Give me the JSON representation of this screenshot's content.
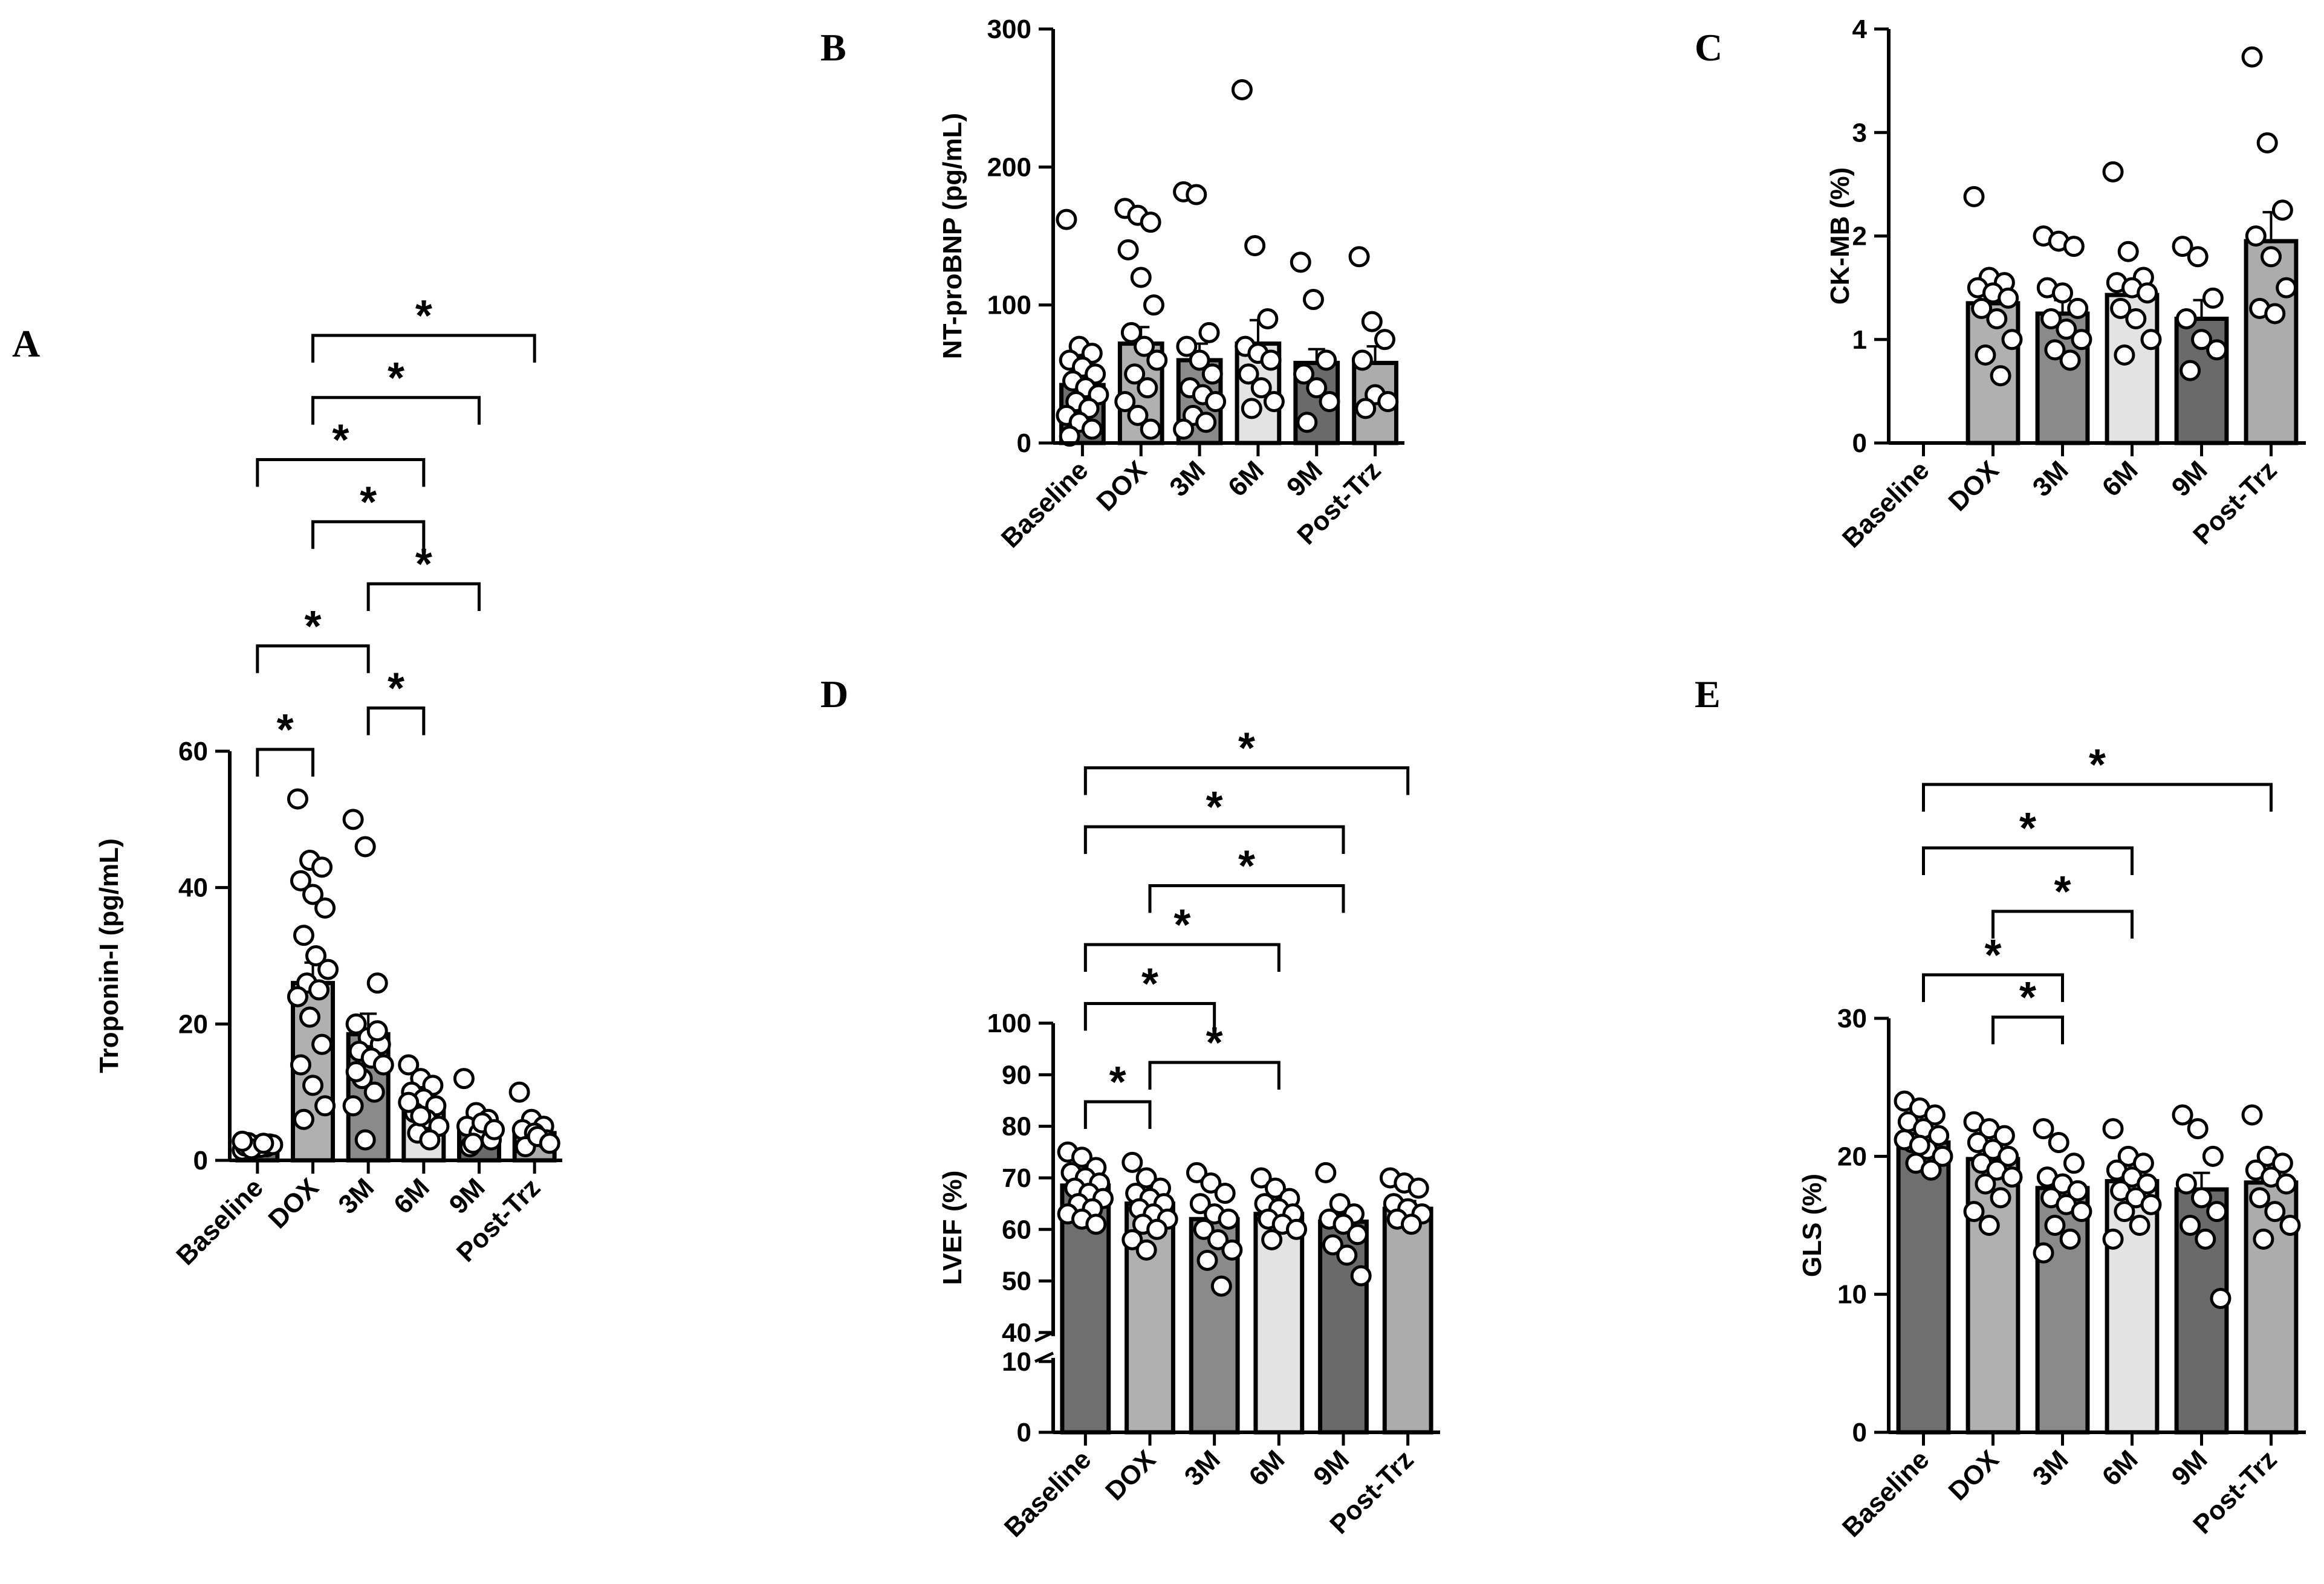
{
  "figure": {
    "description_note": "Five-panel bar chart figure with individual data points, mean and SEM error bars, and significance brackets"
  },
  "colors": {
    "Baseline": "#6f6f6f",
    "DOX": "#b0b0b0",
    "3M": "#8a8a8a",
    "6M": "#e3e3e3",
    "9M": "#6a6a6a",
    "Post-Trz": "#acacac",
    "axis": "#000000",
    "point_fill": "#ffffff"
  },
  "chart_data": [
    {
      "id": "A",
      "letter": "A",
      "type": "bar",
      "title": "",
      "ylabel": "Troponin-I (pg/mL)",
      "xlabel": "",
      "ylim": [
        0,
        60
      ],
      "yticks": [
        0,
        20,
        40,
        60
      ],
      "categories": [
        "Baseline",
        "DOX",
        "3M",
        "6M",
        "9M",
        "Post-Trz"
      ],
      "means": [
        2,
        26,
        18.5,
        7.5,
        5,
        4
      ],
      "sem": [
        0.2,
        3,
        3,
        1,
        0.9,
        0.8
      ],
      "points": [
        [
          1.5,
          1.8,
          2,
          2.1,
          2.2,
          2.4,
          2.6,
          1.9,
          2.3,
          1.7,
          2.5,
          2.8
        ],
        [
          53,
          44,
          43,
          41,
          39,
          37,
          33,
          30,
          28,
          26,
          25,
          24,
          21,
          17,
          14,
          11,
          8,
          6
        ],
        [
          50,
          46,
          26,
          20,
          18,
          17,
          16,
          15,
          14,
          12,
          10,
          8,
          3,
          19,
          13
        ],
        [
          14,
          12,
          11,
          10,
          9,
          8,
          7,
          6,
          5,
          4,
          3,
          8.5,
          6.5
        ],
        [
          12,
          7,
          6,
          5,
          4,
          3,
          2,
          5.5,
          4.5,
          2.5
        ],
        [
          10,
          6,
          5,
          4.5,
          4,
          3,
          2,
          3.5,
          2.5
        ]
      ],
      "brackets": [
        {
          "from": "Baseline",
          "to": "DOX",
          "label": "*"
        },
        {
          "from": "3M",
          "to": "6M",
          "label": "*"
        },
        {
          "from": "Baseline",
          "to": "3M",
          "label": "*"
        },
        {
          "from": "3M",
          "to": "9M",
          "label": "*"
        },
        {
          "from": "DOX",
          "to": "6M",
          "label": "*"
        },
        {
          "from": "Baseline",
          "to": "6M",
          "label": "*"
        },
        {
          "from": "DOX",
          "to": "9M",
          "label": "*"
        },
        {
          "from": "DOX",
          "to": "Post-Trz",
          "label": "*"
        }
      ]
    },
    {
      "id": "B",
      "letter": "B",
      "type": "bar",
      "title": "",
      "ylabel": "NT-proBNP (pg/mL)",
      "xlabel": "",
      "ylim": [
        0,
        300
      ],
      "yticks": [
        0,
        100,
        200,
        300
      ],
      "categories": [
        "Baseline",
        "DOX",
        "3M",
        "6M",
        "9M",
        "Post-Trz"
      ],
      "means": [
        42,
        72,
        60,
        72,
        58,
        58
      ],
      "sem": [
        8,
        12,
        12,
        17,
        10,
        12
      ],
      "points": [
        [
          162,
          70,
          65,
          60,
          55,
          50,
          45,
          40,
          35,
          30,
          25,
          20,
          15,
          10,
          5
        ],
        [
          170,
          165,
          160,
          140,
          120,
          100,
          80,
          70,
          60,
          50,
          40,
          30,
          20,
          10
        ],
        [
          182,
          180,
          80,
          70,
          60,
          50,
          40,
          35,
          30,
          20,
          15,
          10
        ],
        [
          256,
          143,
          90,
          70,
          65,
          60,
          50,
          40,
          30,
          25
        ],
        [
          131,
          104,
          60,
          50,
          40,
          30,
          15
        ],
        [
          135,
          88,
          75,
          60,
          35,
          30,
          25
        ]
      ],
      "brackets": []
    },
    {
      "id": "C",
      "letter": "C",
      "type": "bar",
      "title": "",
      "ylabel": "CK-MB (%)",
      "xlabel": "",
      "ylim": [
        0,
        4
      ],
      "yticks": [
        0,
        1,
        2,
        3,
        4
      ],
      "categories": [
        "Baseline",
        "DOX",
        "3M",
        "6M",
        "9M",
        "Post-Trz"
      ],
      "means": [
        0,
        1.35,
        1.25,
        1.43,
        1.2,
        1.95
      ],
      "sem": [
        0,
        0.12,
        0.13,
        0.13,
        0.18,
        0.28
      ],
      "points": [
        [],
        [
          2.38,
          1.6,
          1.55,
          1.5,
          1.45,
          1.4,
          1.3,
          1.2,
          1.0,
          0.85,
          0.65
        ],
        [
          2.0,
          1.95,
          1.9,
          1.5,
          1.45,
          1.3,
          1.2,
          1.1,
          1.0,
          0.9,
          0.8
        ],
        [
          2.62,
          1.85,
          1.6,
          1.55,
          1.5,
          1.45,
          1.3,
          1.2,
          1.0,
          0.85
        ],
        [
          1.9,
          1.8,
          1.4,
          1.2,
          1.0,
          0.9,
          0.7
        ],
        [
          3.73,
          2.9,
          2.25,
          2.0,
          1.8,
          1.5,
          1.3,
          1.25
        ]
      ],
      "brackets": []
    },
    {
      "id": "D",
      "letter": "D",
      "type": "bar",
      "title": "",
      "ylabel": "LVEF (%)",
      "xlabel": "",
      "ylim": [
        0,
        100
      ],
      "yticks": [
        0,
        10,
        40,
        50,
        60,
        70,
        80,
        90,
        100
      ],
      "axis_break": [
        10,
        40
      ],
      "categories": [
        "Baseline",
        "DOX",
        "3M",
        "6M",
        "9M",
        "Post-Trz"
      ],
      "means": [
        68.5,
        65,
        62,
        63,
        61.5,
        64
      ],
      "sem": [
        1,
        1.2,
        1.5,
        1,
        1.5,
        1.5
      ],
      "points": [
        [
          75,
          74,
          72,
          71,
          70,
          69,
          68,
          67,
          66,
          65,
          64,
          63,
          62,
          61
        ],
        [
          73,
          70,
          68,
          67,
          66,
          65,
          64,
          63,
          62,
          61,
          60,
          58,
          56
        ],
        [
          71,
          69,
          67,
          65,
          63,
          62,
          60,
          58,
          56,
          54,
          49
        ],
        [
          70,
          68,
          66,
          65,
          64,
          63,
          62,
          61,
          60,
          58
        ],
        [
          71,
          65,
          63,
          62,
          61,
          59,
          57,
          55,
          51
        ],
        [
          70,
          69,
          68,
          65,
          64,
          63,
          62,
          61
        ]
      ],
      "brackets": [
        {
          "from": "Baseline",
          "to": "DOX",
          "label": "*"
        },
        {
          "from": "DOX",
          "to": "6M",
          "label": "*"
        },
        {
          "from": "Baseline",
          "to": "3M",
          "label": "*"
        },
        {
          "from": "Baseline",
          "to": "6M",
          "label": "*"
        },
        {
          "from": "DOX",
          "to": "9M",
          "label": "*"
        },
        {
          "from": "Baseline",
          "to": "9M",
          "label": "*"
        },
        {
          "from": "Baseline",
          "to": "Post-Trz",
          "label": "*"
        }
      ]
    },
    {
      "id": "E",
      "letter": "E",
      "type": "bar",
      "title": "",
      "ylabel": "GLS (%)",
      "xlabel": "",
      "ylim": [
        0,
        30
      ],
      "yticks": [
        0,
        10,
        20,
        30
      ],
      "categories": [
        "Baseline",
        "DOX",
        "3M",
        "6M",
        "9M",
        "Post-Trz"
      ],
      "means": [
        21,
        19.8,
        17.7,
        18.2,
        17.6,
        18.1
      ],
      "sem": [
        0.4,
        0.6,
        0.7,
        0.6,
        1.2,
        0.9
      ],
      "points": [
        [
          24,
          23.5,
          23,
          22.5,
          22,
          21.5,
          21,
          20.5,
          20,
          19.5,
          19,
          21.2,
          20.8
        ],
        [
          22.5,
          22,
          21.5,
          21,
          20.5,
          20,
          19.5,
          19,
          18.5,
          18,
          17,
          16,
          15
        ],
        [
          22,
          21,
          19.5,
          18.5,
          18,
          17.5,
          17,
          16.5,
          16,
          15,
          14,
          13
        ],
        [
          22,
          20,
          19.5,
          19,
          18.5,
          18,
          17.5,
          17,
          16.5,
          16,
          15,
          14
        ],
        [
          23,
          22,
          20,
          18,
          17,
          16,
          15,
          14,
          9.7
        ],
        [
          23,
          20,
          19.5,
          19,
          18.5,
          18,
          17,
          16,
          15,
          14
        ]
      ],
      "brackets": [
        {
          "from": "DOX",
          "to": "3M",
          "label": "*"
        },
        {
          "from": "Baseline",
          "to": "3M",
          "label": "*"
        },
        {
          "from": "DOX",
          "to": "6M",
          "label": "*"
        },
        {
          "from": "Baseline",
          "to": "6M",
          "label": "*"
        },
        {
          "from": "Baseline",
          "to": "Post-Trz",
          "label": "*"
        }
      ]
    }
  ]
}
